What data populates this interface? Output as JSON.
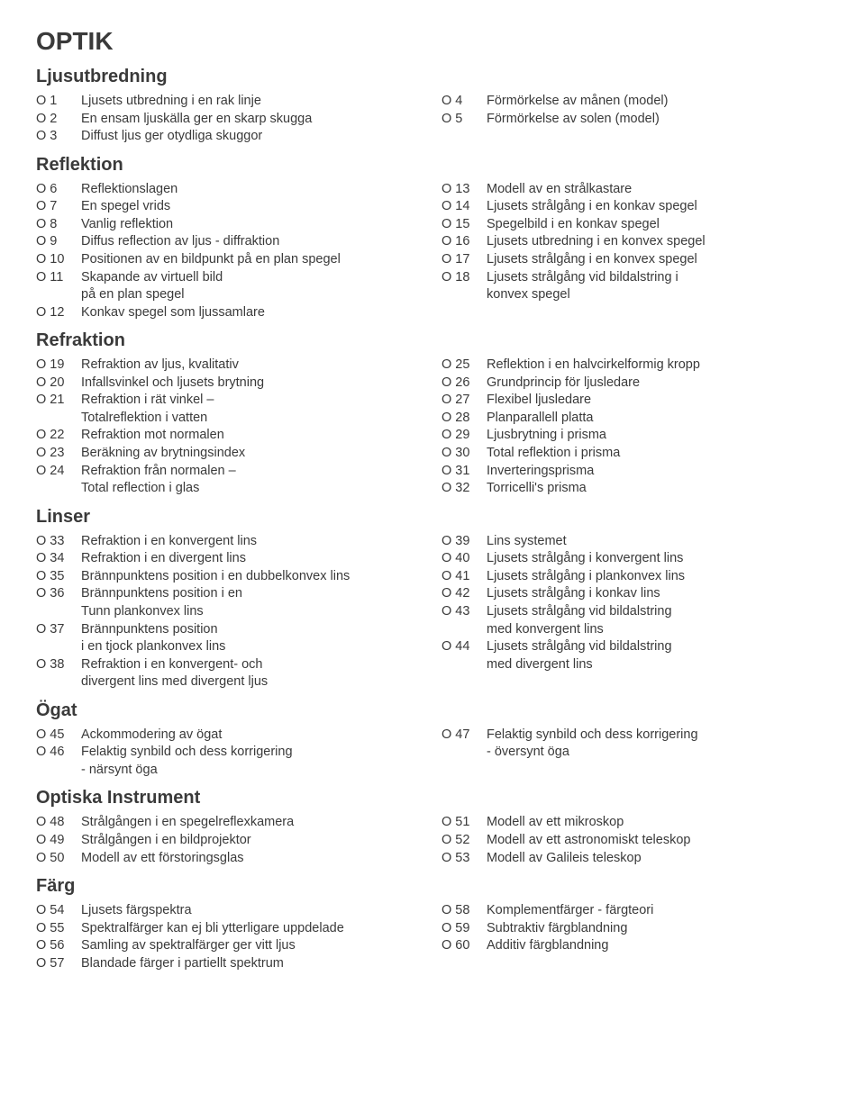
{
  "title": "OPTIK",
  "sections": [
    {
      "heading": "Ljusutbredning",
      "left": [
        {
          "code": "O 1",
          "label": "Ljusets utbredning i en rak linje"
        },
        {
          "code": "O 2",
          "label": "En ensam ljuskälla ger en skarp skugga"
        },
        {
          "code": "O 3",
          "label": "Diffust ljus ger otydliga skuggor"
        }
      ],
      "right": [
        {
          "code": "O 4",
          "label": "Förmörkelse av månen (model)"
        },
        {
          "code": "O 5",
          "label": "Förmörkelse av solen (model)"
        }
      ]
    },
    {
      "heading": "Reflektion",
      "left": [
        {
          "code": "O 6",
          "label": "Reflektionslagen"
        },
        {
          "code": "O 7",
          "label": "En spegel vrids"
        },
        {
          "code": "O 8",
          "label": "Vanlig reflektion"
        },
        {
          "code": "O 9",
          "label": "Diffus reflection av ljus - diffraktion"
        },
        {
          "code": "O 10",
          "label": "Positionen av en bildpunkt på en plan spegel"
        },
        {
          "code": "O 11",
          "label": "Skapande av virtuell bild"
        },
        {
          "code": "",
          "label": "på en plan spegel",
          "cont": true
        },
        {
          "code": "O 12",
          "label": "Konkav spegel som ljussamlare"
        }
      ],
      "right": [
        {
          "code": "O 13",
          "label": "Modell av en strålkastare"
        },
        {
          "code": "O 14",
          "label": "Ljusets strålgång i en konkav spegel"
        },
        {
          "code": "O 15",
          "label": "Spegelbild i en konkav spegel"
        },
        {
          "code": "O 16",
          "label": "Ljusets utbredning i en konvex spegel"
        },
        {
          "code": "O 17",
          "label": "Ljusets strålgång i en konvex spegel"
        },
        {
          "code": "O 18",
          "label": "Ljusets strålgång vid bildalstring i"
        },
        {
          "code": "",
          "label": "konvex spegel",
          "cont": true
        }
      ]
    },
    {
      "heading": "Refraktion",
      "left": [
        {
          "code": "O 19",
          "label": "Refraktion av ljus, kvalitativ"
        },
        {
          "code": "O 20",
          "label": "Infallsvinkel och ljusets brytning"
        },
        {
          "code": "O 21",
          "label": "Refraktion i rät vinkel –"
        },
        {
          "code": "",
          "label": "Totalreflektion i vatten",
          "cont": true
        },
        {
          "code": "O 22",
          "label": "Refraktion mot normalen"
        },
        {
          "code": "O 23",
          "label": "Beräkning av brytningsindex"
        },
        {
          "code": "O 24",
          "label": "Refraktion från normalen –"
        },
        {
          "code": "",
          "label": "Total reflection i glas",
          "cont": true
        }
      ],
      "right": [
        {
          "code": "O 25",
          "label": "Reflektion i en halvcirkelformig kropp"
        },
        {
          "code": "O 26",
          "label": "Grundprincip för ljusledare"
        },
        {
          "code": "O 27",
          "label": "Flexibel ljusledare"
        },
        {
          "code": "O 28",
          "label": "Planparallell platta"
        },
        {
          "code": "O 29",
          "label": "Ljusbrytning i prisma"
        },
        {
          "code": "O 30",
          "label": "Total reflektion i prisma"
        },
        {
          "code": "O 31",
          "label": "Inverteringsprisma"
        },
        {
          "code": "O 32",
          "label": "Torricelli's prisma"
        }
      ]
    },
    {
      "heading": "Linser",
      "left": [
        {
          "code": "O 33",
          "label": "Refraktion i en konvergent lins"
        },
        {
          "code": "O 34",
          "label": "Refraktion i en divergent lins"
        },
        {
          "code": "O 35",
          "label": "Brännpunktens position i en dubbelkonvex lins"
        },
        {
          "code": "O 36",
          "label": "Brännpunktens position i en"
        },
        {
          "code": "",
          "label": "Tunn plankonvex lins",
          "cont": true
        },
        {
          "code": "O 37",
          "label": "Brännpunktens position"
        },
        {
          "code": "",
          "label": "i en tjock plankonvex lins",
          "cont": true
        },
        {
          "code": "O 38",
          "label": "Refraktion i en konvergent- och"
        },
        {
          "code": "",
          "label": "divergent lins med divergent ljus",
          "cont": true
        }
      ],
      "right": [
        {
          "code": "O 39",
          "label": "Lins systemet"
        },
        {
          "code": "O 40",
          "label": "Ljusets strålgång i konvergent lins"
        },
        {
          "code": "O 41",
          "label": "Ljusets strålgång i plankonvex lins"
        },
        {
          "code": "O 42",
          "label": "Ljusets strålgång i konkav lins"
        },
        {
          "code": "O 43",
          "label": "Ljusets strålgång vid bildalstring"
        },
        {
          "code": "",
          "label": "med konvergent lins",
          "cont": true
        },
        {
          "code": "O 44",
          "label": "Ljusets strålgång vid bildalstring"
        },
        {
          "code": "",
          "label": "med divergent lins",
          "cont": true
        }
      ]
    },
    {
      "heading": "Ögat",
      "left": [
        {
          "code": "O 45",
          "label": "Ackommodering av ögat"
        },
        {
          "code": "O 46",
          "label": "Felaktig synbild och dess korrigering"
        },
        {
          "code": "",
          "label": "- närsynt öga",
          "cont": true
        }
      ],
      "right": [
        {
          "code": "O 47",
          "label": "Felaktig synbild och dess korrigering"
        },
        {
          "code": "",
          "label": "- översynt öga",
          "cont": true
        }
      ]
    },
    {
      "heading": "Optiska Instrument",
      "left": [
        {
          "code": "O 48",
          "label": "Strålgången i en spegelreflexkamera"
        },
        {
          "code": "O 49",
          "label": "Strålgången i en bildprojektor"
        },
        {
          "code": "O 50",
          "label": "Modell av ett förstoringsglas"
        }
      ],
      "right": [
        {
          "code": "O 51",
          "label": "Modell av ett mikroskop"
        },
        {
          "code": "O 52",
          "label": "Modell av ett astronomiskt teleskop"
        },
        {
          "code": "O 53",
          "label": "Modell av Galileis teleskop"
        }
      ]
    },
    {
      "heading": "Färg",
      "left": [
        {
          "code": "O 54",
          "label": "Ljusets färgspektra"
        },
        {
          "code": "O 55",
          "label": "Spektralfärger kan ej bli ytterligare uppdelade"
        },
        {
          "code": "O 56",
          "label": "Samling av spektralfärger ger vitt ljus"
        },
        {
          "code": "O 57",
          "label": "Blandade färger i partiellt spektrum"
        }
      ],
      "right": [
        {
          "code": "O 58",
          "label": "Komplementfärger - färgteori"
        },
        {
          "code": "O 59",
          "label": "Subtraktiv färgblandning"
        },
        {
          "code": "O 60",
          "label": "Additiv färgblandning"
        }
      ]
    }
  ]
}
